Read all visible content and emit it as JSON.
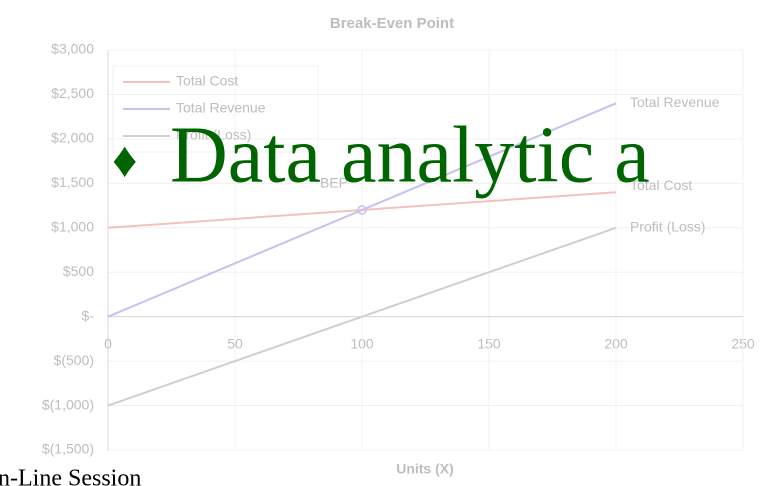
{
  "chart_data": {
    "type": "line",
    "title": "Break-Even Point",
    "xlabel": "Units (X)",
    "x": [
      0,
      200
    ],
    "series": [
      {
        "name": "Total Cost",
        "color": "#f2c2bc",
        "values": [
          1000,
          1400
        ]
      },
      {
        "name": "Total Revenue",
        "color": "#c6c1ef",
        "values": [
          0,
          2400
        ]
      },
      {
        "name": "Profit (Loss)",
        "color": "#cfcfcf",
        "values": [
          -1000,
          1000
        ]
      }
    ],
    "xlim": [
      0,
      250
    ],
    "xticks": [
      0,
      50,
      100,
      150,
      200,
      250
    ],
    "ylim": [
      -1500,
      3000
    ],
    "yticks": [
      {
        "value": -1500,
        "label": "$(1,500)"
      },
      {
        "value": -1000,
        "label": "$(1,000)"
      },
      {
        "value": -500,
        "label": "$(500)"
      },
      {
        "value": 0,
        "label": "$-"
      },
      {
        "value": 500,
        "label": "$500"
      },
      {
        "value": 1000,
        "label": "$1,000"
      },
      {
        "value": 1500,
        "label": "$1,500"
      },
      {
        "value": 2000,
        "label": "$2,000"
      },
      {
        "value": 2500,
        "label": "$2,500"
      },
      {
        "value": 3000,
        "label": "$3,000"
      }
    ],
    "grid": true,
    "legend": "upper left",
    "annotations": [
      {
        "text": "BEP",
        "x": 100,
        "y": 1200
      }
    ]
  },
  "overlay": {
    "bullet": "♦",
    "text": "Data analytic a",
    "footer": "n-Line Session"
  }
}
